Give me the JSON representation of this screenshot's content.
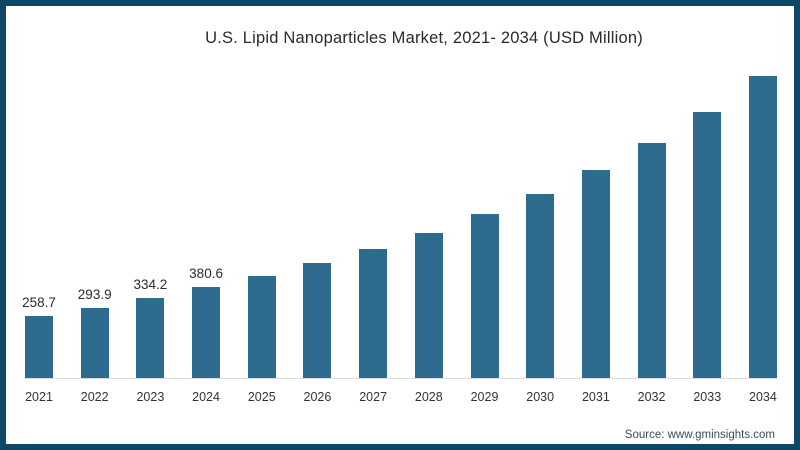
{
  "title": "U.S. Lipid Nanoparticles Market, 2021- 2034 (USD Million)",
  "source": "Source: www.gminsights.com",
  "colors": {
    "bar": "#2e6c8f",
    "frame_border": "#0e4766",
    "axis_line": "#dcdcdc",
    "title_text": "#2b2b2b",
    "value_label_text": "#2a2a2a",
    "year_label_text": "#333333",
    "source_text": "#3d4a55",
    "background": "#ffffff"
  },
  "chart_data": {
    "type": "bar",
    "title": "U.S. Lipid Nanoparticles Market, 2021- 2034 (USD Million)",
    "categories": [
      "2021",
      "2022",
      "2023",
      "2024",
      "2025",
      "2026",
      "2027",
      "2028",
      "2029",
      "2030",
      "2031",
      "2032",
      "2033",
      "2034"
    ],
    "values": [
      258.7,
      293.9,
      334.2,
      380.6,
      427,
      481,
      540,
      607,
      686,
      770,
      870,
      983,
      1113,
      1263
    ],
    "data_labels": [
      "258.7",
      "293.9",
      "334.2",
      "380.6",
      "",
      "",
      "",
      "",
      "",
      "",
      "",
      "",
      "",
      ""
    ],
    "xlabel": "",
    "ylabel": "",
    "ylim": [
      0,
      1380
    ],
    "grid": "off",
    "legend": "none",
    "y_axis_visible": false,
    "baseline_axis_visible": true,
    "source_label": "Source: www.gminsights.com"
  }
}
